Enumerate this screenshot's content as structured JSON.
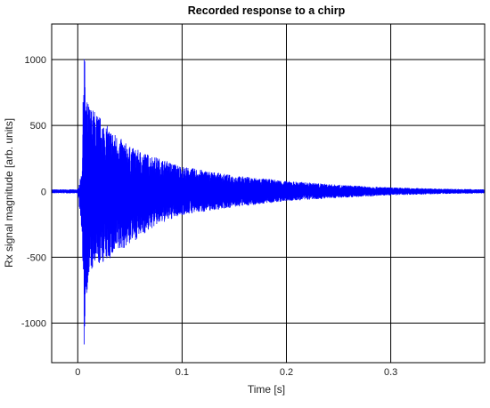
{
  "chart_data": {
    "type": "line",
    "title": "Recorded response to a chirp",
    "xlabel": "Time [s]",
    "ylabel": "Rx signal magnitude [arb. units]",
    "xlim": [
      -0.025,
      0.39
    ],
    "ylim": [
      -1300,
      1270
    ],
    "x_ticks": [
      0,
      0.1,
      0.2,
      0.3
    ],
    "x_tick_labels": [
      "0",
      "0.1",
      "0.2",
      "0.3"
    ],
    "y_ticks": [
      -1000,
      -500,
      0,
      500,
      1000
    ],
    "y_tick_labels": [
      "-1000",
      "-500",
      "0",
      "500",
      "1000"
    ],
    "grid": true,
    "series": [
      {
        "color": "#0000ff",
        "style": "dense oscillation, decaying envelope",
        "x_envelope": [
          -0.025,
          0.0,
          0.004,
          0.006,
          0.008,
          0.012,
          0.02,
          0.03,
          0.05,
          0.075,
          0.1,
          0.15,
          0.2,
          0.25,
          0.3,
          0.35,
          0.39
        ],
        "upper_envelope": [
          15,
          15,
          150,
          1180,
          700,
          650,
          580,
          480,
          340,
          260,
          190,
          120,
          80,
          50,
          30,
          20,
          15
        ],
        "lower_envelope": [
          -15,
          -15,
          -300,
          -1230,
          -800,
          -620,
          -560,
          -520,
          -400,
          -260,
          -180,
          -120,
          -75,
          -50,
          -30,
          -20,
          -15
        ]
      }
    ]
  }
}
